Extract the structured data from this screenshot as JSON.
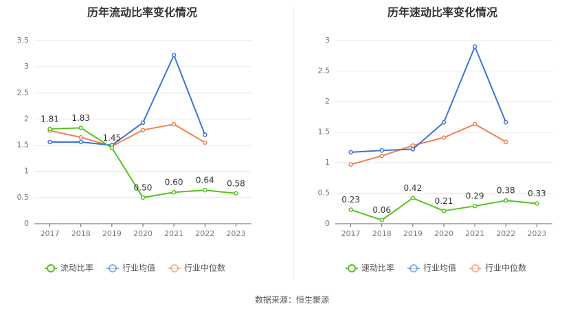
{
  "source_text": "数据来源：恒生聚源",
  "chart_data": [
    {
      "type": "line",
      "title": "历年流动比率变化情况",
      "categories": [
        "2017",
        "2018",
        "2019",
        "2020",
        "2021",
        "2022",
        "2023"
      ],
      "ylim": [
        0,
        3.5
      ],
      "yticks": [
        "0",
        "0.5",
        "1",
        "1.5",
        "2",
        "2.5",
        "3",
        "3.5"
      ],
      "grid": true,
      "legend_position": "bottom",
      "series": [
        {
          "name": "流动比率",
          "color": "#52c41a",
          "values": [
            1.81,
            1.83,
            1.45,
            0.5,
            0.6,
            0.64,
            0.58
          ],
          "labels": [
            "1.81",
            "1.83",
            "1.45",
            "0.50",
            "0.60",
            "0.64",
            "0.58"
          ]
        },
        {
          "name": "行业均值",
          "color": "#3b73d9",
          "values": [
            1.56,
            1.56,
            1.5,
            1.93,
            3.22,
            1.7,
            null
          ]
        },
        {
          "name": "行业中位数",
          "color": "#f08050",
          "values": [
            1.78,
            1.65,
            1.48,
            1.79,
            1.9,
            1.55,
            null
          ]
        }
      ]
    },
    {
      "type": "line",
      "title": "历年速动比率变化情况",
      "categories": [
        "2017",
        "2018",
        "2019",
        "2020",
        "2021",
        "2022",
        "2023"
      ],
      "ylim": [
        0,
        3
      ],
      "yticks": [
        "0",
        "0.5",
        "1",
        "1.5",
        "2",
        "2.5",
        "3"
      ],
      "grid": true,
      "legend_position": "bottom",
      "series": [
        {
          "name": "速动比率",
          "color": "#52c41a",
          "values": [
            0.23,
            0.06,
            0.42,
            0.21,
            0.29,
            0.38,
            0.33
          ],
          "labels": [
            "0.23",
            "0.06",
            "0.42",
            "0.21",
            "0.29",
            "0.38",
            "0.33"
          ]
        },
        {
          "name": "行业均值",
          "color": "#3b73d9",
          "values": [
            1.17,
            1.2,
            1.22,
            1.66,
            2.9,
            1.66,
            null
          ]
        },
        {
          "name": "行业中位数",
          "color": "#f08050",
          "values": [
            0.97,
            1.11,
            1.28,
            1.41,
            1.63,
            1.34,
            null
          ]
        }
      ]
    }
  ]
}
